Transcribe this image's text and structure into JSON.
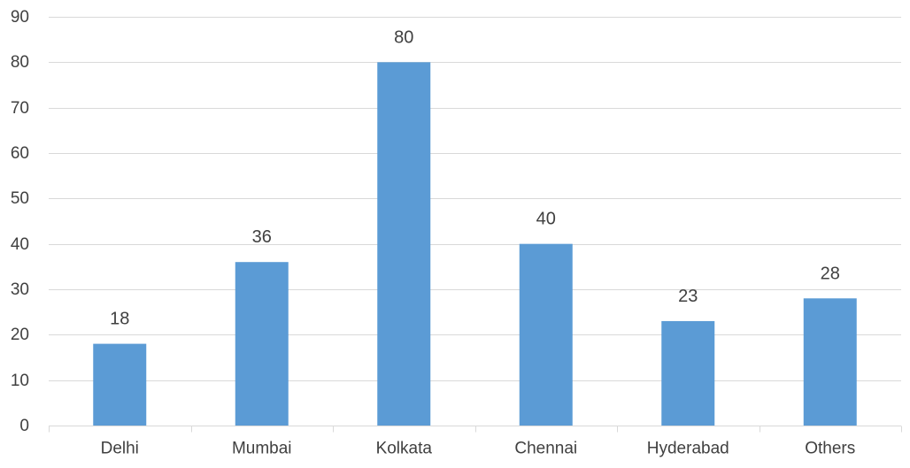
{
  "chart_data": {
    "type": "bar",
    "categories": [
      "Delhi",
      "Mumbai",
      "Kolkata",
      "Chennai",
      "Hyderabad",
      "Others"
    ],
    "values": [
      18,
      36,
      80,
      40,
      23,
      28
    ],
    "data_labels": [
      "18",
      "36",
      "80",
      "40",
      "23",
      "28"
    ],
    "title": "",
    "xlabel": "",
    "ylabel": "",
    "ylim": [
      0,
      90
    ],
    "yticks": [
      0,
      10,
      20,
      30,
      40,
      50,
      60,
      70,
      80,
      90
    ],
    "grid": true,
    "legend": "none",
    "colors": {
      "bar": "#5b9bd5",
      "grid": "#d9d9d9",
      "text": "#404040"
    }
  }
}
